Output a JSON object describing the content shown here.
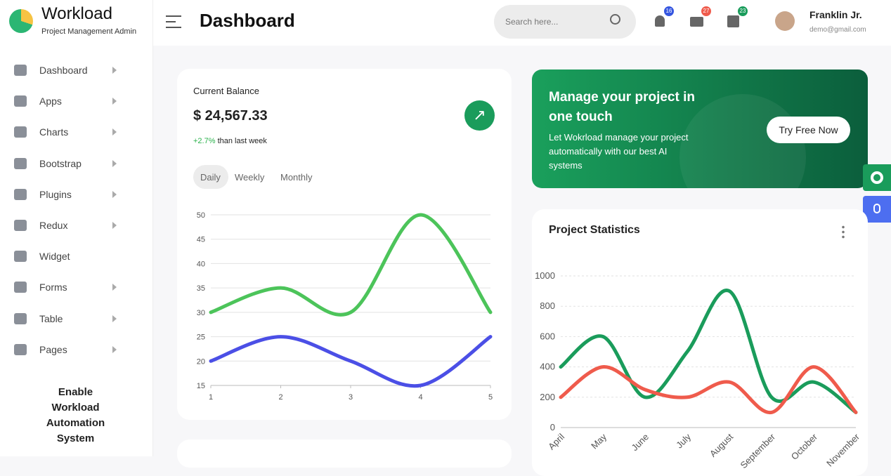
{
  "brand": {
    "name": "Workload",
    "subtitle": "Project Management Admin"
  },
  "menu": [
    {
      "label": "Dashboard",
      "submenu": true
    },
    {
      "label": "Apps",
      "submenu": true
    },
    {
      "label": "Charts",
      "submenu": true
    },
    {
      "label": "Bootstrap",
      "submenu": true
    },
    {
      "label": "Plugins",
      "submenu": true
    },
    {
      "label": "Redux",
      "submenu": true
    },
    {
      "label": "Widget",
      "submenu": false
    },
    {
      "label": "Forms",
      "submenu": true
    },
    {
      "label": "Table",
      "submenu": true
    },
    {
      "label": "Pages",
      "submenu": true
    }
  ],
  "promo": "Enable Workload Automation System",
  "header": {
    "title": "Dashboard",
    "search_placeholder": "Search here...",
    "badges": [
      16,
      27,
      23
    ],
    "user_name": "Franklin Jr.",
    "user_email": "demo@gmail.com"
  },
  "balance": {
    "label": "Current Balance",
    "amount": "$ 24,567.33",
    "change": "+2.7%",
    "change_text": "than last week",
    "tabs": [
      "Daily",
      "Weekly",
      "Monthly"
    ]
  },
  "banner": {
    "title": "Manage your project in one touch",
    "text": "Let Wokrload manage your project automatically with our best AI systems",
    "button": "Try Free Now"
  },
  "chart_data": [
    {
      "type": "line",
      "x": [
        1,
        2,
        3,
        4,
        5
      ],
      "xlim": [
        1,
        5
      ],
      "xticks": [
        1,
        2,
        3,
        4,
        5
      ],
      "ylim": [
        15,
        50
      ],
      "yticks": [
        15,
        20,
        25,
        30,
        35,
        40,
        45,
        50
      ],
      "grid": true,
      "smooth": true,
      "series": [
        {
          "color": "#4cc45a",
          "values": [
            30,
            35,
            30,
            50,
            30
          ]
        },
        {
          "color": "#4b4fe6",
          "values": [
            20,
            25,
            20,
            15,
            25
          ]
        }
      ]
    },
    {
      "type": "line",
      "title": "Project Statistics",
      "categories": [
        "April",
        "May",
        "June",
        "July",
        "August",
        "September",
        "October",
        "November"
      ],
      "ylim": [
        0,
        1000
      ],
      "yticks": [
        0,
        200,
        400,
        600,
        800,
        1000
      ],
      "grid": true,
      "smooth": true,
      "series": [
        {
          "color": "#1a9c5b",
          "values": [
            400,
            600,
            200,
            500,
            900,
            200,
            300,
            100
          ]
        },
        {
          "color": "#ef5b4c",
          "values": [
            200,
            400,
            250,
            200,
            300,
            100,
            400,
            100
          ]
        }
      ]
    }
  ]
}
